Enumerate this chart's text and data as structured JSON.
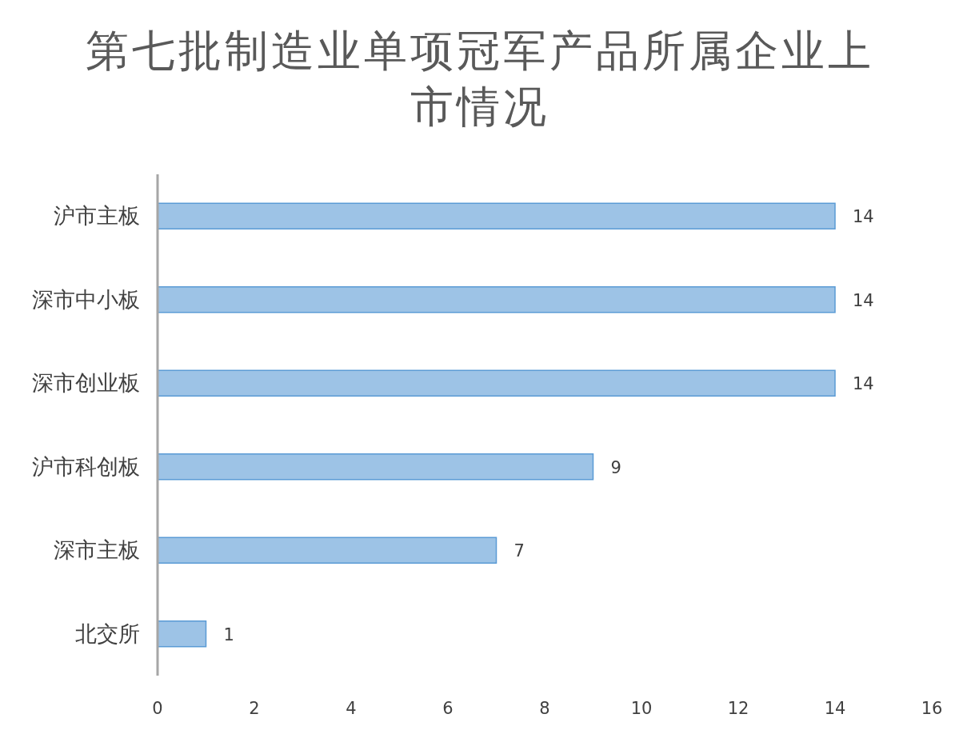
{
  "chart_data": {
    "type": "bar",
    "orientation": "horizontal",
    "title": "第七批制造业单项冠军产品所属企业上市情况",
    "categories": [
      "沪市主板",
      "深市中小板",
      "深市创业板",
      "沪市科创板",
      "深市主板",
      "北交所"
    ],
    "values": [
      14,
      14,
      14,
      9,
      7,
      1
    ],
    "color": "#9dc3e6",
    "xlim": [
      0,
      16
    ],
    "xticks": [
      0,
      2,
      4,
      6,
      8,
      10,
      12,
      14,
      16
    ],
    "data_labels": true
  }
}
